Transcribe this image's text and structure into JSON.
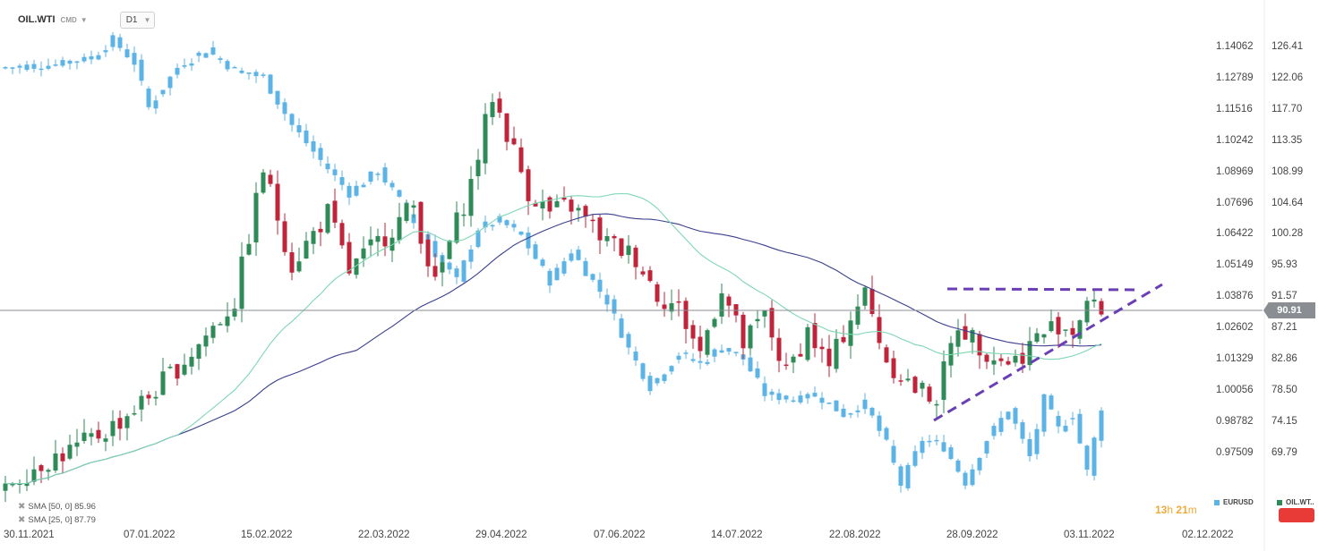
{
  "header": {
    "symbol": "OIL.WTI",
    "source": "CMD",
    "timeframe": "D1"
  },
  "chart_data": {
    "type": "candlestick",
    "instruments": [
      "OIL.WTI",
      "EURUSD"
    ],
    "x_ticks": [
      "30.11.2021",
      "07.01.2022",
      "15.02.2022",
      "22.03.2022",
      "29.04.2022",
      "07.06.2022",
      "14.07.2022",
      "22.08.2022",
      "28.09.2022",
      "03.11.2022",
      "02.12.2022"
    ],
    "y_ticks_eurusd": [
      "1.14062",
      "1.12789",
      "1.11516",
      "1.10242",
      "1.08969",
      "1.07696",
      "1.06422",
      "1.05149",
      "1.03876",
      "1.02602",
      "1.01329",
      "1.00056",
      "0.98782",
      "0.97509"
    ],
    "y_ticks_oil": [
      "126.41",
      "122.06",
      "117.70",
      "113.35",
      "108.99",
      "104.64",
      "100.28",
      "95.93",
      "91.57",
      "87.21",
      "82.86",
      "78.50",
      "74.15",
      "69.79"
    ],
    "current_price": "90.91",
    "oil_close_anchors": [
      [
        0,
        67
      ],
      [
        5,
        70
      ],
      [
        10,
        72
      ],
      [
        15,
        75
      ],
      [
        20,
        79
      ],
      [
        26,
        85
      ],
      [
        32,
        92
      ],
      [
        36,
        110
      ],
      [
        40,
        97
      ],
      [
        45,
        104
      ],
      [
        48,
        96
      ],
      [
        52,
        100
      ],
      [
        57,
        105
      ],
      [
        60,
        94
      ],
      [
        62,
        100
      ],
      [
        65,
        108
      ],
      [
        68,
        120
      ],
      [
        70,
        115
      ],
      [
        73,
        107
      ],
      [
        76,
        104
      ],
      [
        79,
        105
      ],
      [
        84,
        100
      ],
      [
        88,
        98
      ],
      [
        91,
        93
      ],
      [
        94,
        91
      ],
      [
        97,
        85
      ],
      [
        100,
        94
      ],
      [
        103,
        86
      ],
      [
        106,
        90
      ],
      [
        109,
        82
      ],
      [
        112,
        88
      ],
      [
        115,
        83
      ],
      [
        118,
        90
      ],
      [
        120,
        93
      ],
      [
        123,
        84
      ],
      [
        127,
        80
      ],
      [
        130,
        79
      ],
      [
        133,
        89
      ],
      [
        136,
        86
      ],
      [
        139,
        84
      ],
      [
        141,
        84
      ],
      [
        144,
        87
      ],
      [
        147,
        89
      ],
      [
        149,
        88
      ],
      [
        151,
        92
      ],
      [
        152,
        90.9
      ]
    ],
    "eurusd_close_anchors": [
      [
        0,
        1.133
      ],
      [
        6,
        1.134
      ],
      [
        12,
        1.137
      ],
      [
        15,
        1.144
      ],
      [
        18,
        1.135
      ],
      [
        20,
        1.117
      ],
      [
        24,
        1.133
      ],
      [
        28,
        1.14
      ],
      [
        32,
        1.132
      ],
      [
        36,
        1.129
      ],
      [
        40,
        1.11
      ],
      [
        44,
        1.096
      ],
      [
        48,
        1.083
      ],
      [
        52,
        1.092
      ],
      [
        56,
        1.076
      ],
      [
        60,
        1.059
      ],
      [
        63,
        1.048
      ],
      [
        66,
        1.069
      ],
      [
        69,
        1.072
      ],
      [
        72,
        1.066
      ],
      [
        76,
        1.048
      ],
      [
        79,
        1.06
      ],
      [
        84,
        1.04
      ],
      [
        87,
        1.021
      ],
      [
        90,
        1.006
      ],
      [
        94,
        1.019
      ],
      [
        97,
        1.015
      ],
      [
        100,
        1.022
      ],
      [
        103,
        1.017
      ],
      [
        106,
        1.003
      ],
      [
        110,
        1.001
      ],
      [
        113,
        1.003
      ],
      [
        117,
        0.995
      ],
      [
        120,
        0.999
      ],
      [
        123,
        0.983
      ],
      [
        125,
        0.967
      ],
      [
        128,
        0.985
      ],
      [
        131,
        0.982
      ],
      [
        134,
        0.968
      ],
      [
        137,
        0.985
      ],
      [
        140,
        0.997
      ],
      [
        143,
        0.978
      ],
      [
        145,
        1.001
      ],
      [
        147,
        0.989
      ],
      [
        149,
        0.995
      ],
      [
        151,
        0.972
      ],
      [
        153,
        0.998
      ]
    ],
    "sma_periods": [
      50,
      25
    ],
    "sma_colors": [
      "#3b3f8f",
      "#7ed6b4"
    ],
    "annotations": {
      "resistance_line": "dashed horizontal",
      "support_trendline": "dashed ascending"
    }
  },
  "legend": [
    {
      "label": "SMA [50, 0] 85.96"
    },
    {
      "label": "SMA [25, 0] 87.79"
    }
  ],
  "countdown": {
    "hours": "13",
    "hours_unit": "h",
    "minutes": "21",
    "minutes_unit": "m"
  },
  "compare": [
    {
      "label": "EURUSD",
      "color": "#5bb3e6"
    },
    {
      "label": "OIL.WT..",
      "color": "#2e8b57"
    }
  ],
  "colors": {
    "up": "#2e8b57",
    "down": "#c0243a",
    "overlay": "#5bb3e6",
    "annotation": "#6a3fb5",
    "accent_red": "#e83a37"
  }
}
